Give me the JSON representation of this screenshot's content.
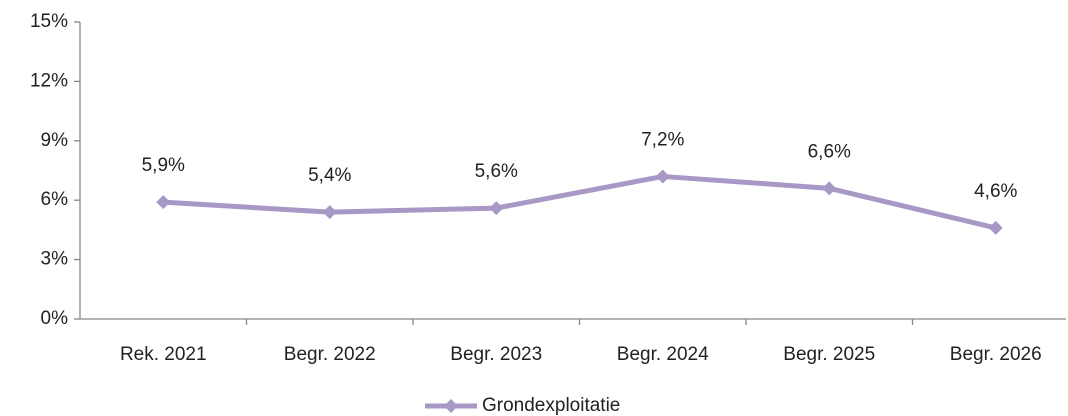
{
  "chart_data": {
    "type": "line",
    "categories": [
      "Rek. 2021",
      "Begr. 2022",
      "Begr. 2023",
      "Begr. 2024",
      "Begr. 2025",
      "Begr. 2026"
    ],
    "series": [
      {
        "name": "Grondexploitatie",
        "color": "#a898c6",
        "values": [
          5.9,
          5.4,
          5.6,
          7.2,
          6.6,
          4.6
        ],
        "value_labels": [
          "5,9%",
          "5,4%",
          "5,6%",
          "7,2%",
          "6,6%",
          "4,6%"
        ]
      }
    ],
    "ylim": [
      0,
      15
    ],
    "yticks": [
      {
        "value": 0,
        "label": "0%"
      },
      {
        "value": 3,
        "label": "3%"
      },
      {
        "value": 6,
        "label": "6%"
      },
      {
        "value": 9,
        "label": "9%"
      },
      {
        "value": 12,
        "label": "12%"
      },
      {
        "value": 15,
        "label": "15%"
      }
    ],
    "grid": false,
    "legend": "bottom"
  }
}
